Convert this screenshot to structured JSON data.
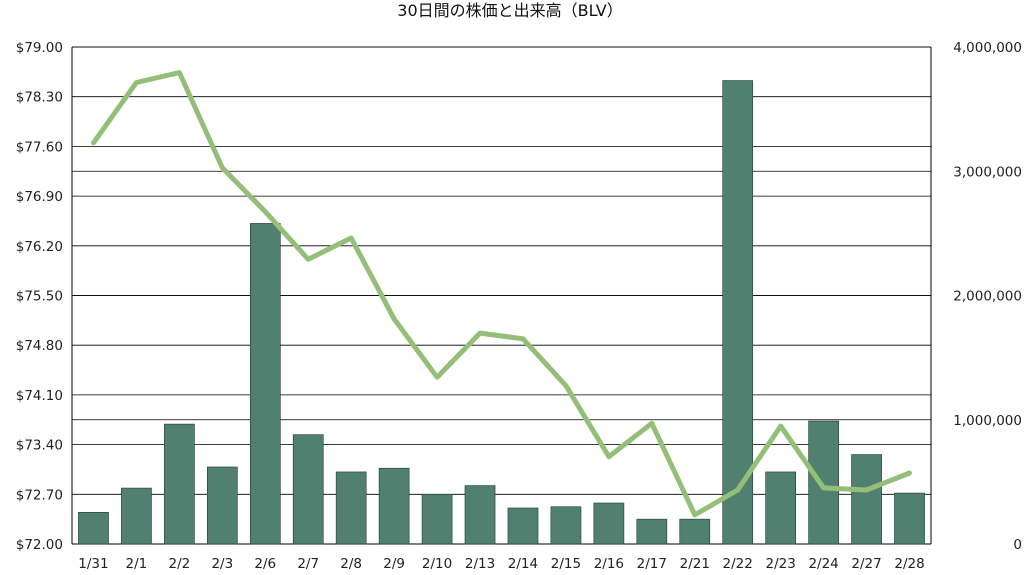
{
  "chart_data": {
    "type": "bar+line",
    "title": "30日間の株価と出来高（BLV）",
    "categories": [
      "1/31",
      "2/1",
      "2/2",
      "2/3",
      "2/6",
      "2/7",
      "2/8",
      "2/9",
      "2/10",
      "2/13",
      "2/14",
      "2/15",
      "2/16",
      "2/17",
      "2/21",
      "2/22",
      "2/23",
      "2/24",
      "2/27",
      "2/28"
    ],
    "series": [
      {
        "type": "bar",
        "axis": "right",
        "values": [
          255000,
          450000,
          965000,
          620000,
          2580000,
          880000,
          580000,
          610000,
          400000,
          470000,
          290000,
          300000,
          330000,
          200000,
          200000,
          3730000,
          580000,
          990000,
          720000,
          410000
        ]
      },
      {
        "type": "line",
        "axis": "left",
        "values": [
          77.65,
          78.5,
          78.64,
          77.3,
          76.68,
          76.01,
          76.31,
          75.17,
          74.35,
          74.97,
          74.89,
          74.23,
          73.23,
          73.7,
          72.41,
          72.76,
          73.66,
          72.79,
          72.76,
          73.0
        ]
      }
    ],
    "y_left": {
      "min": 72.0,
      "max": 79.0,
      "ticks": [
        "$72.00",
        "$72.70",
        "$73.40",
        "$74.10",
        "$74.80",
        "$75.50",
        "$76.20",
        "$76.90",
        "$77.60",
        "$78.30",
        "$79.00"
      ]
    },
    "y_right": {
      "min": 0,
      "max": 4000000,
      "ticks": [
        "0",
        "1,000,000",
        "2,000,000",
        "3,000,000",
        "4,000,000"
      ]
    },
    "grid": true,
    "colors": {
      "bar": "#528070",
      "line": "#93bf78",
      "grid": "#000000",
      "text": "#222222"
    }
  }
}
